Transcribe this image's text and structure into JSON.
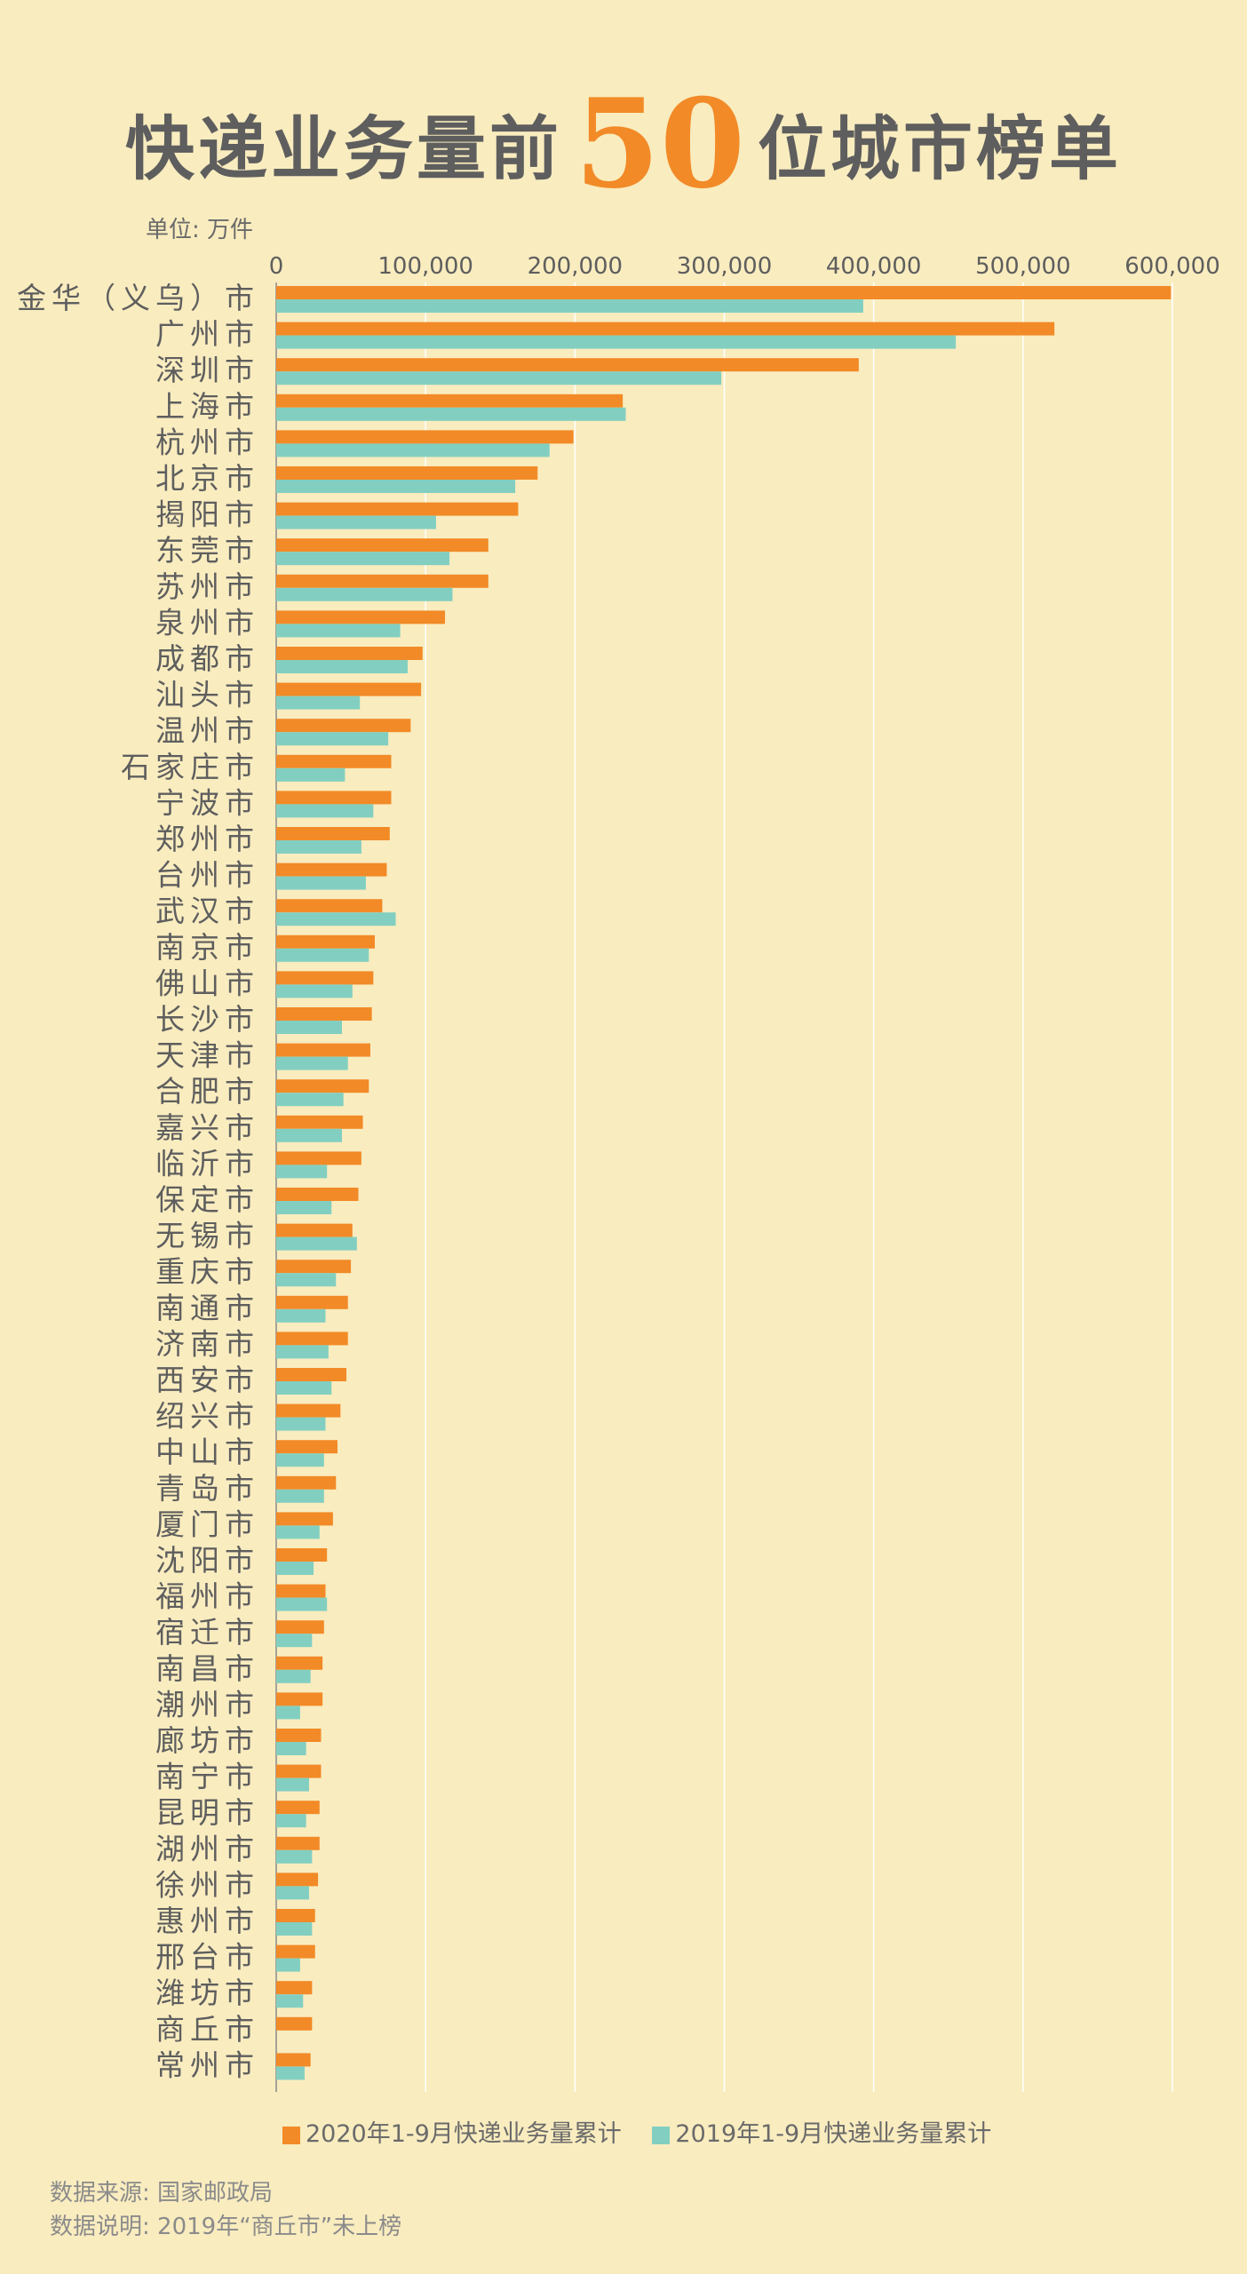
{
  "title": {
    "prefix": "快递业务量前",
    "number": "50",
    "suffix": "位城市榜单"
  },
  "unit_label": "单位: 万件",
  "colors": {
    "background": "#f9ecbf",
    "series_2020": "#f28a27",
    "series_2019": "#82cfc1",
    "text": "#5e5e5e"
  },
  "legend": {
    "item_2020": "2020年1-9月快递业务量累计",
    "item_2019": "2019年1-9月快递业务量累计"
  },
  "source": {
    "line1": "数据来源: 国家邮政局",
    "line2": "数据说明:  2019年“商丘市”未上榜"
  },
  "chart_data": {
    "type": "bar",
    "orientation": "horizontal",
    "xlim": [
      0,
      600000
    ],
    "x_ticks": [
      0,
      100000,
      200000,
      300000,
      400000,
      500000,
      600000
    ],
    "x_tick_labels": [
      "0",
      "100,000",
      "200,000",
      "300,000",
      "400,000",
      "500,000",
      "600,000"
    ],
    "axis_position": "top",
    "grid": true,
    "legend_position": "bottom",
    "categories": [
      "金华（义乌）市",
      "广州市",
      "深圳市",
      "上海市",
      "杭州市",
      "北京市",
      "揭阳市",
      "东莞市",
      "苏州市",
      "泉州市",
      "成都市",
      "汕头市",
      "温州市",
      "石家庄市",
      "宁波市",
      "郑州市",
      "台州市",
      "武汉市",
      "南京市",
      "佛山市",
      "长沙市",
      "天津市",
      "合肥市",
      "嘉兴市",
      "临沂市",
      "保定市",
      "无锡市",
      "重庆市",
      "南通市",
      "济南市",
      "西安市",
      "绍兴市",
      "中山市",
      "青岛市",
      "厦门市",
      "沈阳市",
      "福州市",
      "宿迁市",
      "南昌市",
      "潮州市",
      "廊坊市",
      "南宁市",
      "昆明市",
      "湖州市",
      "徐州市",
      "惠州市",
      "邢台市",
      "潍坊市",
      "商丘市",
      "常州市"
    ],
    "series": [
      {
        "name": "2020年1-9月快递业务量累计",
        "values": [
          599000,
          521000,
          390000,
          232000,
          199000,
          175000,
          162000,
          142000,
          142000,
          113000,
          98000,
          97000,
          90000,
          77000,
          77000,
          76000,
          74000,
          71000,
          66000,
          65000,
          64000,
          63000,
          62000,
          58000,
          57000,
          55000,
          51000,
          50000,
          48000,
          48000,
          47000,
          43000,
          41000,
          40000,
          38000,
          34000,
          33000,
          32000,
          31000,
          31000,
          30000,
          30000,
          29000,
          29000,
          28000,
          26000,
          26000,
          24000,
          24000,
          23000
        ]
      },
      {
        "name": "2019年1-9月快递业务量累计",
        "values": [
          393000,
          455000,
          298000,
          234000,
          183000,
          160000,
          107000,
          116000,
          118000,
          83000,
          88000,
          56000,
          75000,
          46000,
          65000,
          57000,
          60000,
          80000,
          62000,
          51000,
          44000,
          48000,
          45000,
          44000,
          34000,
          37000,
          54000,
          40000,
          33000,
          35000,
          37000,
          33000,
          32000,
          32000,
          29000,
          25000,
          34000,
          24000,
          23000,
          16000,
          20000,
          22000,
          20000,
          24000,
          22000,
          24000,
          16000,
          18000,
          null,
          19000
        ]
      }
    ]
  }
}
